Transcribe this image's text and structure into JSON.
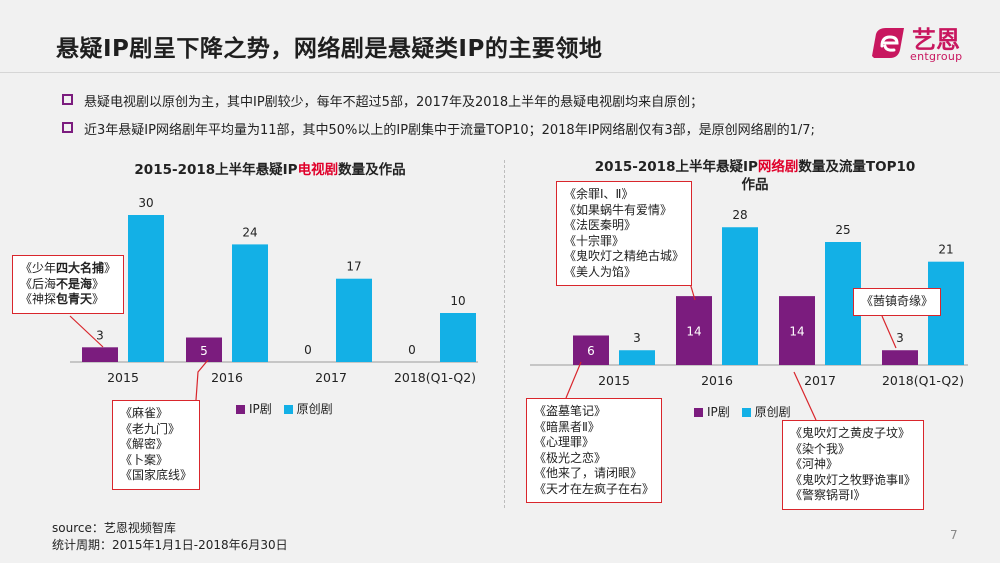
{
  "title": "悬疑IP剧呈下降之势，网络剧是悬疑类IP的主要领地",
  "logo": {
    "text": "艺恩",
    "sub": "entgroup"
  },
  "bullets": [
    "悬疑电视剧以原创为主，其中IP剧较少，每年不超过5部，2017年及2018上半年的悬疑电视剧均来自原创；",
    "近3年悬疑IP网络剧年平均量为11部，其中50%以上的IP剧集中于流量TOP10；2018年IP网络剧仅有3部，是原创网络剧的1/7;"
  ],
  "colors": {
    "ip": "#7b1c7e",
    "original": "#13b0e6",
    "callout_border": "#d9262c"
  },
  "legend": {
    "ip": "IP剧",
    "original": "原创剧"
  },
  "chart_data": [
    {
      "type": "bar",
      "title_pre": "2015-2018上半年悬疑IP",
      "title_hl": "电视剧",
      "title_post": "数量及作品",
      "categories": [
        "2015",
        "2016",
        "2017",
        "2018(Q1-Q2)"
      ],
      "series": [
        {
          "name": "IP剧",
          "values": [
            3,
            5,
            0,
            0
          ]
        },
        {
          "name": "原创剧",
          "values": [
            30,
            24,
            17,
            10
          ]
        }
      ]
    },
    {
      "type": "bar",
      "title_pre": "2015-2018上半年悬疑IP",
      "title_hl": "网络剧",
      "title_post": "数量及流量TOP10",
      "title_line2": "作品",
      "categories": [
        "2015",
        "2016",
        "2017",
        "2018(Q1-Q2)"
      ],
      "series": [
        {
          "name": "IP剧",
          "values": [
            6,
            14,
            14,
            3
          ]
        },
        {
          "name": "原创剧",
          "values": [
            3,
            28,
            25,
            21
          ]
        }
      ]
    }
  ],
  "callouts": {
    "tv2015": [
      {
        "pre": "《少年",
        "bold": "四大名捕",
        "post": "》"
      },
      {
        "pre": "《后海",
        "bold": "不是海",
        "post": "》"
      },
      {
        "pre": "《神探",
        "bold": "包青天",
        "post": "》"
      }
    ],
    "tv2016": [
      "《麻雀》",
      "《老九门》",
      "《解密》",
      "《卜案》",
      "《国家底线》"
    ],
    "web2016": [
      "《余罪Ⅰ、Ⅱ》",
      "《如果蜗牛有爱情》",
      "《法医秦明》",
      "《十宗罪》",
      "《鬼吹灯之精绝古城》",
      "《美人为馅》"
    ],
    "web2015": [
      "《盗墓笔记》",
      "《暗黑者Ⅱ》",
      "《心理罪》",
      "《极光之恋》",
      "《他来了，请闭眼》",
      "《天才在左疯子在右》"
    ],
    "web2017": [
      "《鬼吹灯之黄皮子坟》",
      "《染个我》",
      "《河神》",
      "《鬼吹灯之牧野诡事Ⅱ》",
      "《警察锅哥Ⅰ》"
    ],
    "web2018": [
      "《莤镇奇缘》"
    ]
  },
  "source": {
    "line1": "source：艺恩视频智库",
    "line2": "统计周期：2015年1月1日-2018年6月30日"
  },
  "page_number": "7"
}
